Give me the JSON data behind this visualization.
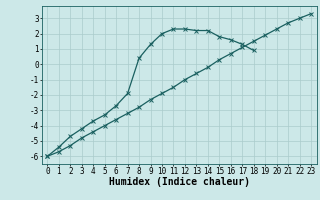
{
  "xlabel": "Humidex (Indice chaleur)",
  "bg_color": "#cce8e8",
  "grid_color": "#aacccc",
  "line_color": "#1a6060",
  "xlim": [
    -0.5,
    23.5
  ],
  "ylim": [
    -6.5,
    3.8
  ],
  "yticks": [
    -6,
    -5,
    -4,
    -3,
    -2,
    -1,
    0,
    1,
    2,
    3
  ],
  "xticks": [
    0,
    1,
    2,
    3,
    4,
    5,
    6,
    7,
    8,
    9,
    10,
    11,
    12,
    13,
    14,
    15,
    16,
    17,
    18,
    19,
    20,
    21,
    22,
    23
  ],
  "line1_x": [
    0,
    1,
    2,
    3,
    4,
    5,
    6,
    7,
    8,
    9,
    10,
    11,
    12,
    13,
    14,
    15,
    16,
    17,
    18
  ],
  "line1_y": [
    -6.0,
    -5.4,
    -4.7,
    -4.2,
    -3.7,
    -3.3,
    -2.7,
    -1.9,
    0.4,
    1.3,
    2.0,
    2.3,
    2.3,
    2.2,
    2.2,
    1.8,
    1.6,
    1.3,
    0.9
  ],
  "line2_x": [
    0,
    1,
    2,
    3,
    4,
    5,
    6,
    7,
    8,
    9,
    10,
    11,
    12,
    13,
    14,
    15,
    16,
    17,
    18,
    19,
    20,
    21,
    22,
    23
  ],
  "line2_y": [
    -6.0,
    -5.7,
    -5.3,
    -4.8,
    -4.4,
    -4.0,
    -3.6,
    -3.2,
    -2.8,
    -2.3,
    -1.9,
    -1.5,
    -1.0,
    -0.6,
    -0.2,
    0.3,
    0.7,
    1.1,
    1.5,
    1.9,
    2.3,
    2.7,
    3.0,
    3.3
  ],
  "marker": "x",
  "markersize": 3,
  "linewidth": 0.9,
  "xlabel_fontsize": 7,
  "tick_fontsize": 5.5
}
